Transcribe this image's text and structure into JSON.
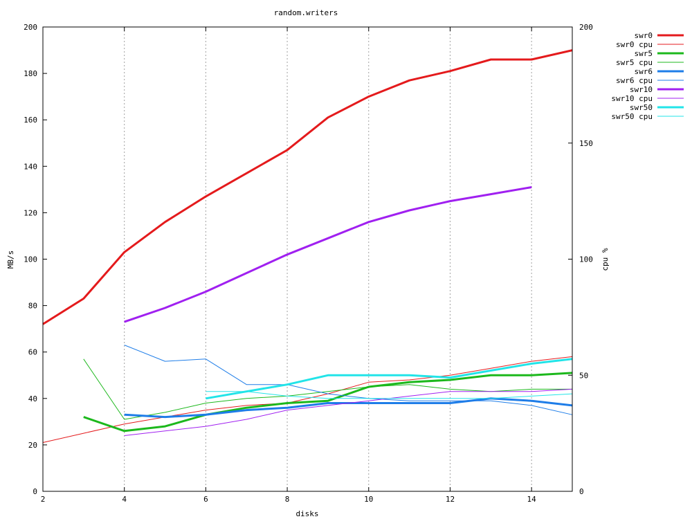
{
  "chart_data": {
    "type": "line",
    "title": "random.writers",
    "xlabel": "disks",
    "ylabel": "MB/s",
    "y2label": "cpu %",
    "xlim": [
      2,
      15
    ],
    "ylim": [
      0,
      200
    ],
    "y2lim": [
      0,
      200
    ],
    "xticks": [
      2,
      4,
      6,
      8,
      10,
      12,
      14
    ],
    "yticks": [
      0,
      20,
      40,
      60,
      80,
      100,
      120,
      140,
      160,
      180,
      200
    ],
    "y2ticks": [
      0,
      50,
      100,
      150,
      200
    ],
    "grid": "vertical-dotted",
    "legend_position": "top-right-outside",
    "series": [
      {
        "name": "swr0",
        "axis": "y",
        "color": "#e41a1c",
        "weight": "thick",
        "x": [
          2,
          3,
          4,
          5,
          6,
          7,
          8,
          9,
          10,
          11,
          12,
          13,
          14,
          15
        ],
        "values": [
          72,
          83,
          103,
          116,
          127,
          137,
          147,
          161,
          170,
          177,
          181,
          186,
          186,
          190
        ]
      },
      {
        "name": "swr0 cpu",
        "axis": "y2",
        "color": "#e41a1c",
        "weight": "thin",
        "x": [
          2,
          3,
          4,
          5,
          6,
          7,
          8,
          9,
          10,
          11,
          12,
          13,
          14,
          15
        ],
        "values": [
          21,
          25,
          29,
          32,
          35,
          37,
          38,
          42,
          47,
          48,
          50,
          53,
          56,
          58
        ]
      },
      {
        "name": "swr5",
        "axis": "y",
        "color": "#1cb81c",
        "weight": "thick",
        "x": [
          3,
          4,
          5,
          6,
          7,
          8,
          9,
          10,
          11,
          12,
          13,
          14,
          15
        ],
        "values": [
          32,
          26,
          28,
          33,
          36,
          38,
          39,
          45,
          47,
          48,
          50,
          50,
          51
        ]
      },
      {
        "name": "swr5 cpu",
        "axis": "y2",
        "color": "#1cb81c",
        "weight": "thin",
        "x": [
          3,
          4,
          5,
          6,
          7,
          8,
          9,
          10,
          11,
          12,
          13,
          14,
          15
        ],
        "values": [
          57,
          31,
          34,
          38,
          40,
          41,
          43,
          45,
          46,
          44,
          43,
          44,
          44
        ]
      },
      {
        "name": "swr6",
        "axis": "y",
        "color": "#1e7de8",
        "weight": "thick",
        "x": [
          4,
          5,
          6,
          7,
          8,
          9,
          10,
          11,
          12,
          13,
          14,
          15
        ],
        "values": [
          33,
          32,
          33,
          35,
          36,
          38,
          38,
          38,
          38,
          40,
          39,
          37
        ]
      },
      {
        "name": "swr6 cpu",
        "axis": "y2",
        "color": "#1e7de8",
        "weight": "thin",
        "x": [
          4,
          5,
          6,
          7,
          8,
          9,
          10,
          11,
          12,
          13,
          14,
          15
        ],
        "values": [
          63,
          56,
          57,
          46,
          46,
          42,
          40,
          39,
          39,
          39,
          37,
          33
        ]
      },
      {
        "name": "swr10",
        "axis": "y",
        "color": "#a020f0",
        "weight": "thick",
        "x": [
          4,
          5,
          6,
          7,
          8,
          9,
          10,
          11,
          12,
          13,
          14
        ],
        "values": [
          73,
          79,
          86,
          94,
          102,
          109,
          116,
          121,
          125,
          128,
          131
        ]
      },
      {
        "name": "swr10 cpu",
        "axis": "y2",
        "color": "#a020f0",
        "weight": "thin",
        "x": [
          4,
          5,
          6,
          7,
          8,
          9,
          10,
          11,
          12,
          13,
          14,
          15
        ],
        "values": [
          24,
          26,
          28,
          31,
          35,
          37,
          39,
          41,
          43,
          43,
          43,
          44
        ]
      },
      {
        "name": "swr50",
        "axis": "y",
        "color": "#22e4e8",
        "weight": "thick",
        "x": [
          6,
          7,
          8,
          9,
          10,
          11,
          12,
          13,
          14,
          15
        ],
        "values": [
          40,
          43,
          46,
          50,
          50,
          50,
          49,
          52,
          55,
          57
        ]
      },
      {
        "name": "swr50 cpu",
        "axis": "y2",
        "color": "#22e4e8",
        "weight": "thin",
        "x": [
          6,
          7,
          8,
          9,
          10,
          11,
          12,
          13,
          14,
          15
        ],
        "values": [
          43,
          43,
          41,
          40,
          40,
          40,
          40,
          40,
          41,
          42
        ]
      }
    ]
  }
}
